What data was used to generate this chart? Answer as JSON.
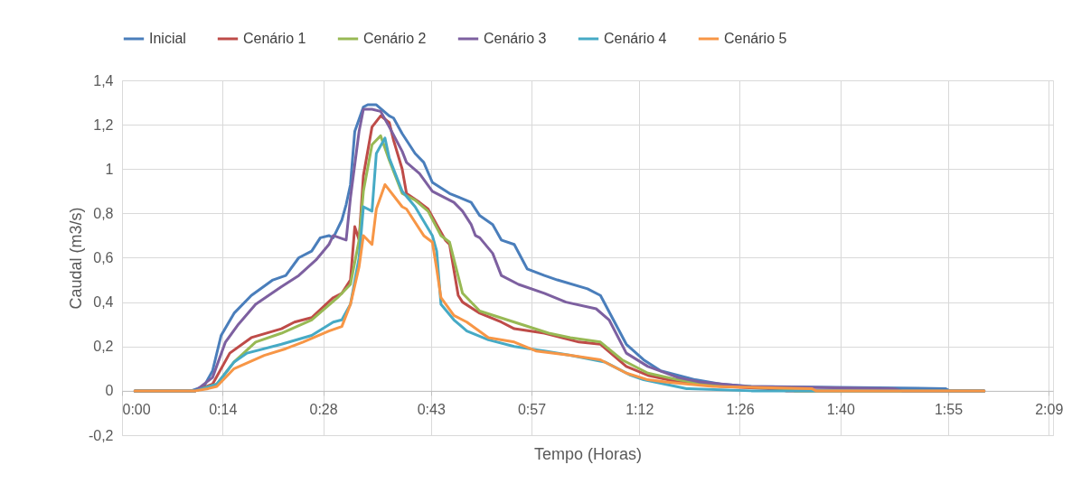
{
  "chart_data": {
    "type": "line",
    "xlabel": "Tempo (Horas)",
    "ylabel": "Caudal (m3/s)",
    "xlim": [
      0,
      2.16
    ],
    "ylim": [
      -0.2,
      1.4
    ],
    "xticks": [
      {
        "value": 0,
        "label": "0:00"
      },
      {
        "value": 0.2333,
        "label": "0:14"
      },
      {
        "value": 0.4667,
        "label": "0:28"
      },
      {
        "value": 0.7167,
        "label": "0:43"
      },
      {
        "value": 0.95,
        "label": "0:57"
      },
      {
        "value": 1.2,
        "label": "1:12"
      },
      {
        "value": 1.4333,
        "label": "1:26"
      },
      {
        "value": 1.6667,
        "label": "1:40"
      },
      {
        "value": 1.9167,
        "label": "1:55"
      },
      {
        "value": 2.15,
        "label": "2:09"
      }
    ],
    "yticks": [
      {
        "value": -0.2,
        "label": "-0,2"
      },
      0,
      {
        "value": 0.2,
        "label": "0,2"
      },
      {
        "value": 0.4,
        "label": "0,4"
      },
      {
        "value": 0.6,
        "label": "0,6"
      },
      {
        "value": 0.8,
        "label": "0,8"
      },
      1,
      {
        "value": 1.2,
        "label": "1,2"
      },
      {
        "value": 1.4,
        "label": "1,4"
      }
    ],
    "grid": true,
    "legend": "top",
    "marker": "none",
    "line_style": "solid",
    "series": [
      {
        "name": "Inicial",
        "color": "#4a7ebb",
        "x": [
          0.03,
          0.16,
          0.19,
          0.21,
          0.23,
          0.26,
          0.3,
          0.35,
          0.38,
          0.41,
          0.44,
          0.46,
          0.48,
          0.49,
          0.51,
          0.52,
          0.53,
          0.54,
          0.56,
          0.57,
          0.59,
          0.62,
          0.63,
          0.65,
          0.68,
          0.7,
          0.72,
          0.76,
          0.81,
          0.83,
          0.86,
          0.88,
          0.91,
          0.94,
          0.98,
          1.01,
          1.08,
          1.11,
          1.14,
          1.17,
          1.21,
          1.25,
          1.33,
          1.39,
          1.46,
          1.91,
          1.92,
          2.0
        ],
        "values": [
          0,
          0,
          0.02,
          0.09,
          0.25,
          0.35,
          0.43,
          0.5,
          0.52,
          0.6,
          0.63,
          0.69,
          0.7,
          0.69,
          0.77,
          0.84,
          0.93,
          1.17,
          1.28,
          1.29,
          1.29,
          1.24,
          1.23,
          1.16,
          1.07,
          1.03,
          0.94,
          0.89,
          0.85,
          0.79,
          0.75,
          0.68,
          0.66,
          0.55,
          0.52,
          0.5,
          0.46,
          0.43,
          0.32,
          0.21,
          0.14,
          0.09,
          0.05,
          0.03,
          0.02,
          0.01,
          0,
          0
        ]
      },
      {
        "name": "Cenário 1",
        "color": "#be4b48",
        "x": [
          0.03,
          0.17,
          0.21,
          0.25,
          0.3,
          0.37,
          0.4,
          0.44,
          0.49,
          0.51,
          0.53,
          0.54,
          0.55,
          0.56,
          0.58,
          0.6,
          0.62,
          0.63,
          0.65,
          0.66,
          0.69,
          0.71,
          0.73,
          0.75,
          0.76,
          0.78,
          0.79,
          0.83,
          0.88,
          0.91,
          0.98,
          1.06,
          1.11,
          1.17,
          1.22,
          1.29,
          1.39,
          1.5,
          1.54,
          2.0
        ],
        "values": [
          0,
          0,
          0.03,
          0.17,
          0.24,
          0.28,
          0.31,
          0.33,
          0.42,
          0.44,
          0.5,
          0.74,
          0.68,
          0.97,
          1.19,
          1.24,
          1.21,
          1.13,
          1.0,
          0.89,
          0.85,
          0.82,
          0.75,
          0.68,
          0.66,
          0.43,
          0.4,
          0.35,
          0.31,
          0.28,
          0.26,
          0.22,
          0.21,
          0.11,
          0.07,
          0.04,
          0.02,
          0.01,
          0,
          0
        ]
      },
      {
        "name": "Cenário 2",
        "color": "#98b954",
        "x": [
          0.03,
          0.17,
          0.22,
          0.26,
          0.31,
          0.37,
          0.44,
          0.5,
          0.53,
          0.55,
          0.56,
          0.58,
          0.6,
          0.62,
          0.65,
          0.68,
          0.71,
          0.74,
          0.76,
          0.79,
          0.83,
          0.91,
          0.99,
          1.04,
          1.11,
          1.16,
          1.22,
          1.29,
          1.35,
          1.44,
          1.54,
          1.56,
          2.0
        ],
        "values": [
          0,
          0,
          0.03,
          0.13,
          0.22,
          0.26,
          0.32,
          0.42,
          0.48,
          0.68,
          0.9,
          1.11,
          1.15,
          1.04,
          0.89,
          0.86,
          0.81,
          0.7,
          0.67,
          0.44,
          0.36,
          0.31,
          0.26,
          0.24,
          0.22,
          0.14,
          0.08,
          0.05,
          0.03,
          0.02,
          0.01,
          0,
          0
        ]
      },
      {
        "name": "Cenário 3",
        "color": "#7d60a0",
        "x": [
          0.03,
          0.17,
          0.21,
          0.24,
          0.27,
          0.31,
          0.37,
          0.41,
          0.45,
          0.48,
          0.49,
          0.52,
          0.53,
          0.55,
          0.56,
          0.58,
          0.6,
          0.62,
          0.65,
          0.66,
          0.69,
          0.72,
          0.77,
          0.79,
          0.81,
          0.82,
          0.83,
          0.86,
          0.88,
          0.92,
          0.98,
          1.03,
          1.1,
          1.13,
          1.17,
          1.22,
          1.29,
          1.34,
          1.45,
          1.79,
          1.81,
          2.0
        ],
        "values": [
          0,
          0,
          0.06,
          0.22,
          0.3,
          0.39,
          0.47,
          0.52,
          0.59,
          0.66,
          0.7,
          0.68,
          0.87,
          1.17,
          1.27,
          1.27,
          1.26,
          1.19,
          1.08,
          1.03,
          0.98,
          0.9,
          0.85,
          0.81,
          0.75,
          0.7,
          0.69,
          0.62,
          0.52,
          0.48,
          0.44,
          0.4,
          0.37,
          0.32,
          0.17,
          0.11,
          0.06,
          0.04,
          0.02,
          0.01,
          0,
          0
        ]
      },
      {
        "name": "Cenário 4",
        "color": "#46aac5",
        "x": [
          0.03,
          0.17,
          0.22,
          0.26,
          0.29,
          0.37,
          0.44,
          0.49,
          0.51,
          0.53,
          0.55,
          0.56,
          0.58,
          0.59,
          0.61,
          0.62,
          0.65,
          0.68,
          0.72,
          0.73,
          0.74,
          0.77,
          0.8,
          0.85,
          0.91,
          0.98,
          1.04,
          1.12,
          1.18,
          1.21,
          1.26,
          1.31,
          1.46,
          2.0
        ],
        "values": [
          0,
          0,
          0.03,
          0.13,
          0.17,
          0.21,
          0.25,
          0.31,
          0.32,
          0.39,
          0.6,
          0.83,
          0.81,
          1.07,
          1.14,
          1.05,
          0.9,
          0.83,
          0.7,
          0.63,
          0.39,
          0.32,
          0.27,
          0.23,
          0.2,
          0.18,
          0.16,
          0.13,
          0.07,
          0.05,
          0.03,
          0.01,
          0,
          0
        ]
      },
      {
        "name": "Cenário 5",
        "color": "#f79646",
        "x": [
          0.03,
          0.17,
          0.2,
          0.22,
          0.26,
          0.33,
          0.38,
          0.42,
          0.48,
          0.51,
          0.53,
          0.55,
          0.56,
          0.58,
          0.59,
          0.61,
          0.65,
          0.66,
          0.7,
          0.72,
          0.73,
          0.74,
          0.77,
          0.8,
          0.85,
          0.91,
          0.96,
          1.04,
          1.11,
          1.17,
          1.22,
          1.26,
          1.37,
          1.6,
          1.61,
          2.0
        ],
        "values": [
          0,
          0,
          0.01,
          0.02,
          0.1,
          0.16,
          0.19,
          0.22,
          0.27,
          0.29,
          0.39,
          0.56,
          0.7,
          0.66,
          0.82,
          0.93,
          0.83,
          0.82,
          0.7,
          0.67,
          0.55,
          0.42,
          0.34,
          0.31,
          0.24,
          0.22,
          0.18,
          0.16,
          0.14,
          0.08,
          0.05,
          0.04,
          0.02,
          0.01,
          0,
          0
        ]
      }
    ]
  }
}
